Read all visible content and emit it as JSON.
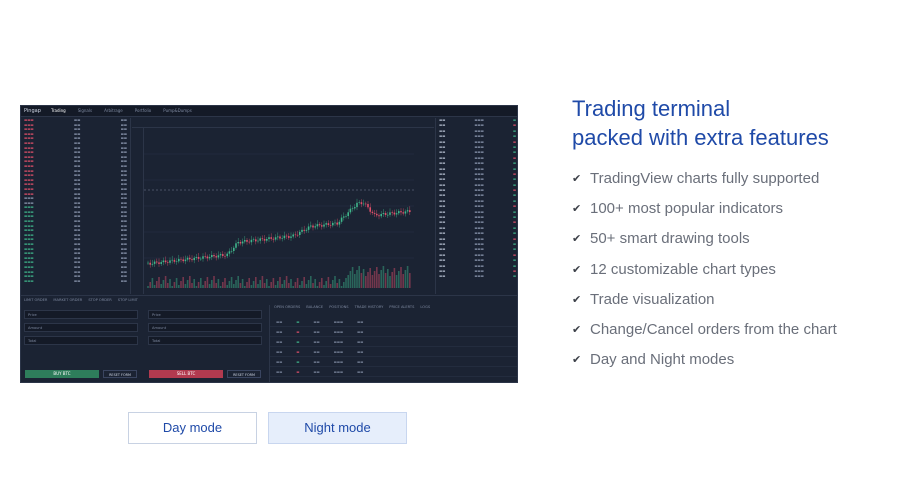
{
  "headline": {
    "line1": "Trading terminal",
    "line2": "packed with extra features"
  },
  "features": [
    "TradingView charts fully supported",
    "100+ most popular indicators",
    "50+ smart drawing tools",
    "12 customizable chart types",
    "Trade visualization",
    "Change/Cancel orders from the chart",
    "Day and Night modes"
  ],
  "feature_icon": "check-icon",
  "mode_buttons": {
    "day": "Day mode",
    "night": "Night mode",
    "selected": "night"
  },
  "colors": {
    "accent": "#1f4aa8",
    "terminal_bg": "#1b2333",
    "up": "#3fb68b",
    "down": "#e0506a"
  },
  "terminal": {
    "logo": "Pingap",
    "nav": [
      "Trading",
      "Signals",
      "Arbitrage",
      "Portfolio",
      "Pump&Dumps"
    ],
    "buy_label": "BUY BTC",
    "sell_label": "SELL BTC",
    "reset_label": "RESET FORM",
    "form_labels": {
      "price": "Price",
      "amount": "Amount",
      "total": "Total"
    },
    "bottom_tabs": [
      "LIMIT ORDER",
      "MARKET ORDER",
      "STOP ORDER",
      "STOP LIMIT"
    ],
    "order_tabs": [
      "OPEN ORDERS",
      "BALANCE",
      "POSITIONS",
      "TRADE HISTORY",
      "PRICE ALERTS",
      "LOGS"
    ]
  }
}
